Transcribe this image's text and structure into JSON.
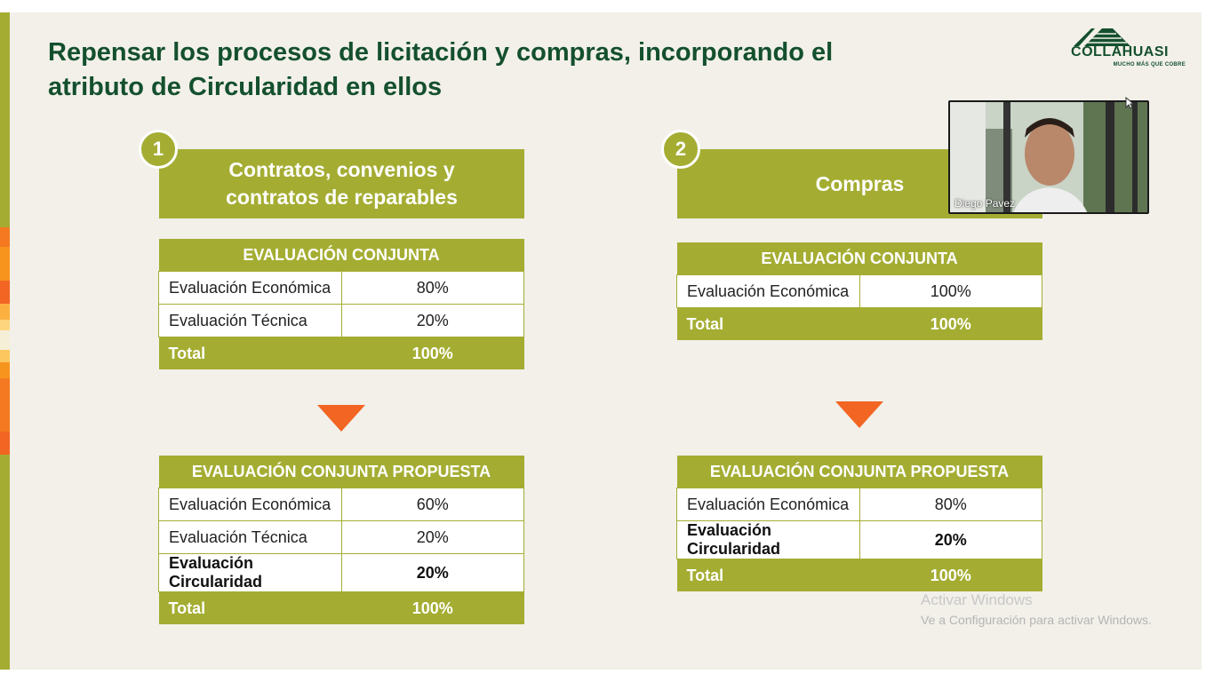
{
  "slide": {
    "title": "Repensar los procesos de licitación y compras, incorporando el atributo de Circularidad en ellos",
    "logo": {
      "name": "COLLAHUASI",
      "tagline": "MUCHO MÁS QUE COBRE"
    }
  },
  "section1": {
    "number": "1",
    "header": "Contratos, convenios y contratos de reparables",
    "table_current": {
      "title": "EVALUACIÓN CONJUNTA",
      "rows": [
        {
          "label": "Evaluación Económica",
          "value": "80%"
        },
        {
          "label": "Evaluación Técnica",
          "value": "20%"
        }
      ],
      "total_label": "Total",
      "total_value": "100%"
    },
    "table_proposed": {
      "title": "EVALUACIÓN CONJUNTA PROPUESTA",
      "rows": [
        {
          "label": "Evaluación Económica",
          "value": "60%"
        },
        {
          "label": "Evaluación Técnica",
          "value": "20%"
        },
        {
          "label": "Evaluación Circularidad",
          "value": "20%"
        }
      ],
      "total_label": "Total",
      "total_value": "100%"
    }
  },
  "section2": {
    "number": "2",
    "header": "Compras",
    "table_current": {
      "title": "EVALUACIÓN CONJUNTA",
      "rows": [
        {
          "label": "Evaluación Económica",
          "value": "100%"
        }
      ],
      "total_label": "Total",
      "total_value": "100%"
    },
    "table_proposed": {
      "title": "EVALUACIÓN CONJUNTA PROPUESTA",
      "rows": [
        {
          "label": "Evaluación Económica",
          "value": "80%"
        },
        {
          "label": "Evaluación Circularidad",
          "value": "20%"
        }
      ],
      "total_label": "Total",
      "total_value": "100%"
    }
  },
  "video": {
    "participant_name": "Diego Pavez"
  },
  "watermark": {
    "line1": "Activar Windows",
    "line2": "Ve a Configuración para activar Windows."
  },
  "colors": {
    "olive": "#a4ad32",
    "dark_green": "#14502e",
    "arrow_orange": "#f26522",
    "slide_bg": "#f2f0e9"
  }
}
